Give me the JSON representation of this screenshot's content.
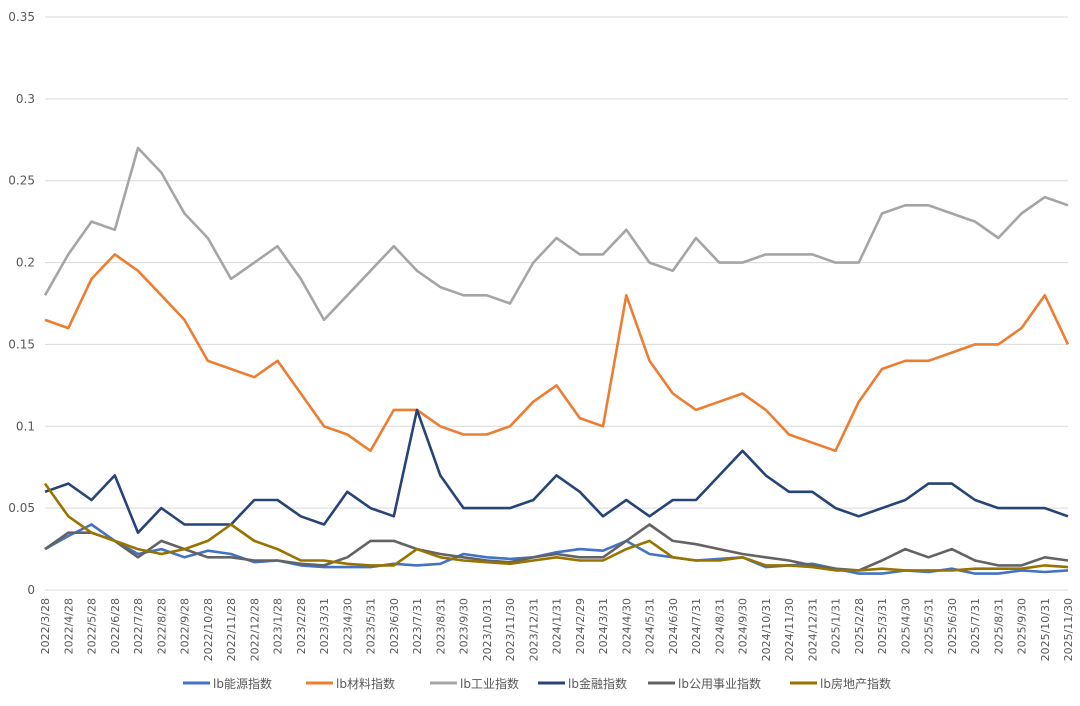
{
  "chart_data": {
    "type": "line",
    "title": "",
    "xlabel": "",
    "ylabel": "",
    "ylim": [
      0,
      0.35
    ],
    "yticks": [
      "0",
      "0.05",
      "0.1",
      "0.15",
      "0.2",
      "0.25",
      "0.3",
      "0.35"
    ],
    "grid": true,
    "legend_position": "bottom",
    "x_tick_labels": [
      "2022/3/28",
      "2022/4/28",
      "2022/5/28",
      "2022/6/28",
      "2022/7/28",
      "2022/8/28",
      "2022/9/28",
      "2022/10/28",
      "2022/11/28",
      "2022/12/28",
      "2023/1/28",
      "2023/2/28",
      "2023/3/31",
      "2023/4/30",
      "2023/5/31",
      "2023/6/30",
      "2023/7/31",
      "2023/8/31",
      "2023/9/30",
      "2023/10/31",
      "2023/11/30",
      "2023/12/31",
      "2024/1/31",
      "2024/2/29",
      "2024/3/31",
      "2024/4/30",
      "2024/5/31",
      "2024/6/30",
      "2024/7/31",
      "2024/8/31",
      "2024/9/30",
      "2024/10/31",
      "2024/11/30",
      "2024/12/31",
      "2025/1/31",
      "2025/2/28",
      "2025/3/31",
      "2025/4/30",
      "2025/5/31",
      "2025/6/30",
      "2025/7/31",
      "2025/8/31",
      "2025/9/30",
      "2025/10/31",
      "2025/11/30"
    ],
    "series": [
      {
        "name": "lb能源指数",
        "color": "#4472C4",
        "values": [
          0.025,
          0.033,
          0.04,
          0.03,
          0.022,
          0.025,
          0.02,
          0.024,
          0.022,
          0.017,
          0.018,
          0.015,
          0.014,
          0.014,
          0.014,
          0.016,
          0.015,
          0.016,
          0.022,
          0.02,
          0.019,
          0.02,
          0.023,
          0.025,
          0.024,
          0.03,
          0.022,
          0.02,
          0.018,
          0.019,
          0.02,
          0.014,
          0.015,
          0.016,
          0.013,
          0.01,
          0.01,
          0.012,
          0.011,
          0.013,
          0.01,
          0.01,
          0.012,
          0.011,
          0.012
        ]
      },
      {
        "name": "lb材料指数",
        "color": "#ED7D31",
        "values": [
          0.165,
          0.16,
          0.19,
          0.205,
          0.195,
          0.18,
          0.165,
          0.14,
          0.135,
          0.13,
          0.14,
          0.12,
          0.1,
          0.095,
          0.085,
          0.11,
          0.11,
          0.1,
          0.095,
          0.095,
          0.1,
          0.115,
          0.125,
          0.105,
          0.1,
          0.18,
          0.14,
          0.12,
          0.11,
          0.115,
          0.12,
          0.11,
          0.095,
          0.09,
          0.085,
          0.115,
          0.135,
          0.14,
          0.14,
          0.145,
          0.15,
          0.15,
          0.16,
          0.18,
          0.15
        ]
      },
      {
        "name": "lb工业指数",
        "color": "#A5A5A5",
        "values": [
          0.18,
          0.205,
          0.225,
          0.22,
          0.27,
          0.255,
          0.23,
          0.215,
          0.19,
          0.2,
          0.21,
          0.19,
          0.165,
          0.18,
          0.195,
          0.21,
          0.195,
          0.185,
          0.18,
          0.18,
          0.175,
          0.2,
          0.215,
          0.205,
          0.205,
          0.22,
          0.2,
          0.195,
          0.215,
          0.2,
          0.2,
          0.205,
          0.205,
          0.205,
          0.2,
          0.2,
          0.23,
          0.235,
          0.235,
          0.23,
          0.225,
          0.215,
          0.23,
          0.24,
          0.235
        ]
      },
      {
        "name": "lb金融指数",
        "color": "#264478",
        "values": [
          0.06,
          0.065,
          0.055,
          0.07,
          0.035,
          0.05,
          0.04,
          0.04,
          0.04,
          0.055,
          0.055,
          0.045,
          0.04,
          0.06,
          0.05,
          0.045,
          0.11,
          0.07,
          0.05,
          0.05,
          0.05,
          0.055,
          0.07,
          0.06,
          0.045,
          0.055,
          0.045,
          0.055,
          0.055,
          0.07,
          0.085,
          0.07,
          0.06,
          0.06,
          0.05,
          0.045,
          0.05,
          0.055,
          0.065,
          0.065,
          0.055,
          0.05,
          0.05,
          0.05,
          0.045
        ]
      },
      {
        "name": "lb公用事业指数",
        "color": "#636363",
        "values": [
          0.025,
          0.035,
          0.035,
          0.03,
          0.02,
          0.03,
          0.025,
          0.02,
          0.02,
          0.018,
          0.018,
          0.016,
          0.015,
          0.02,
          0.03,
          0.03,
          0.025,
          0.022,
          0.02,
          0.018,
          0.017,
          0.02,
          0.022,
          0.02,
          0.02,
          0.03,
          0.04,
          0.03,
          0.028,
          0.025,
          0.022,
          0.02,
          0.018,
          0.015,
          0.013,
          0.012,
          0.018,
          0.025,
          0.02,
          0.025,
          0.018,
          0.015,
          0.015,
          0.02,
          0.018
        ]
      },
      {
        "name": "lb房地产指数",
        "color": "#997300",
        "values": [
          0.065,
          0.045,
          0.035,
          0.03,
          0.025,
          0.022,
          0.025,
          0.03,
          0.04,
          0.03,
          0.025,
          0.018,
          0.018,
          0.016,
          0.015,
          0.015,
          0.025,
          0.02,
          0.018,
          0.017,
          0.016,
          0.018,
          0.02,
          0.018,
          0.018,
          0.025,
          0.03,
          0.02,
          0.018,
          0.018,
          0.02,
          0.015,
          0.015,
          0.014,
          0.012,
          0.012,
          0.013,
          0.012,
          0.012,
          0.012,
          0.013,
          0.013,
          0.013,
          0.015,
          0.014
        ]
      }
    ]
  }
}
